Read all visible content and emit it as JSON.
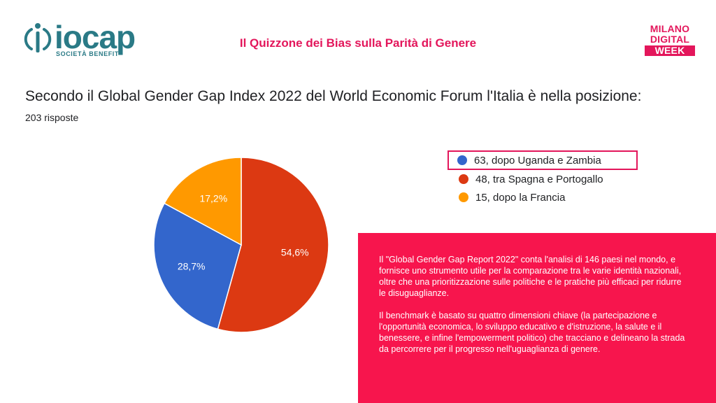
{
  "header": {
    "logo_left_text": "iocap",
    "logo_left_subtitle": "SOCIETÀ BENEFIT",
    "quiz_title": "Il Quizzone dei Bias sulla Parità di Genere",
    "logo_right_lines": [
      "MILANO",
      "DIGITAL",
      "WEEK"
    ]
  },
  "colors": {
    "brand_pink": "#e3165b",
    "info_box": "#f7154d",
    "iocap_teal": "#2a7a86"
  },
  "question": {
    "title": "Secondo il Global Gender Gap Index 2022 del World Economic Forum l'Italia è nella posizione:",
    "responses": "203 risposte"
  },
  "chart_data": {
    "type": "pie",
    "categories": [
      "63, dopo Uganda e Zambia",
      "48, tra Spagna e Portogallo",
      "15, dopo la Francia"
    ],
    "values": [
      28.7,
      54.6,
      17.2
    ],
    "value_labels": [
      "28,7%",
      "54,6%",
      "17,2%"
    ],
    "colors": [
      "#3366cc",
      "#dc3912",
      "#ff9900"
    ],
    "highlighted_legend_index": 0,
    "legend_position": "right"
  },
  "info": {
    "paragraph1": "Il \"Global Gender Gap Report 2022\" conta l'analisi di 146 paesi nel mondo, e fornisce uno strumento utile per la comparazione tra le varie identità nazionali, oltre che una prioritizzazione sulle politiche e le pratiche più efficaci per ridurre le disuguaglianze.",
    "paragraph2": "Il benchmark è basato su quattro dimensioni chiave (la partecipazione e l'opportunità economica, lo sviluppo educativo e d'istruzione, la salute e il benessere, e infine l'empowerment politico) che tracciano e delineano la strada da percorrere per il progresso nell'uguaglianza di genere."
  }
}
